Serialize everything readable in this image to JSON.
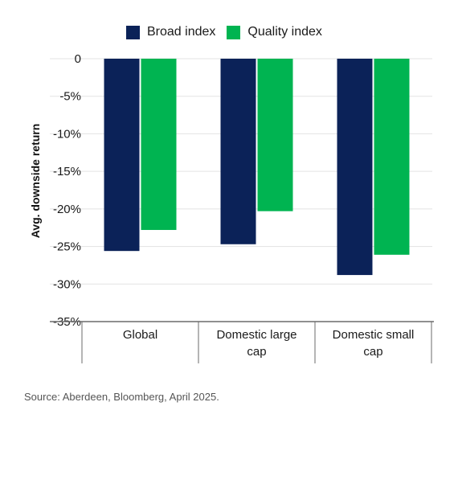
{
  "chart_data": {
    "type": "bar",
    "categories": [
      "Global",
      "Domestic large cap",
      "Domestic small cap"
    ],
    "series": [
      {
        "name": "Broad index",
        "values": [
          -25.6,
          -24.7,
          -28.8
        ]
      },
      {
        "name": "Quality index",
        "values": [
          -22.8,
          -20.3,
          -26.1
        ]
      }
    ],
    "ylabel": "Avg. downside return",
    "xlabel": "",
    "ylim": [
      -35,
      0
    ],
    "yticks": [
      0,
      -5,
      -10,
      -15,
      -20,
      -25,
      -30,
      -35
    ],
    "ytick_labels": [
      "0",
      "-5%",
      "-10%",
      "-15%",
      "-20%",
      "-25%",
      "-30%",
      "-35%"
    ],
    "grid": true,
    "legend_position": "top"
  },
  "legend": {
    "items": [
      {
        "label": "Broad index",
        "color": "#0b2258"
      },
      {
        "label": "Quality index",
        "color": "#00b451"
      }
    ]
  },
  "source": "Source: Aberdeen, Bloomberg, April 2025.",
  "colors": {
    "broad": "#0b2258",
    "quality": "#00b451",
    "grid": "#e3e3e3",
    "axis": "#6b6b6b"
  }
}
